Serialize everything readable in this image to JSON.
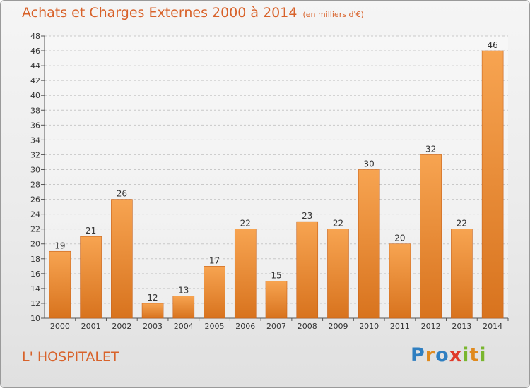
{
  "header": {
    "title": "Achats et Charges Externes 2000 à 2014",
    "subtitle": "(en milliers d'€)"
  },
  "footer": {
    "place": "L' HOSPITALET",
    "logo_letters": [
      {
        "ch": "P",
        "color": "#2f7fc1"
      },
      {
        "ch": "r",
        "color": "#e08a1e"
      },
      {
        "ch": "o",
        "color": "#2f7fc1"
      },
      {
        "ch": "x",
        "color": "#e03a2a"
      },
      {
        "ch": "i",
        "color": "#79b62e"
      },
      {
        "ch": "t",
        "color": "#e08a1e"
      },
      {
        "ch": "i",
        "color": "#79b62e"
      }
    ]
  },
  "chart_data": {
    "type": "bar",
    "title": "Achats et Charges Externes 2000 à 2014",
    "subtitle": "(en milliers d'€)",
    "categories": [
      "2000",
      "2001",
      "2002",
      "2003",
      "2004",
      "2005",
      "2006",
      "2007",
      "2008",
      "2009",
      "2010",
      "2011",
      "2012",
      "2013",
      "2014"
    ],
    "values": [
      19,
      21,
      26,
      12,
      13,
      17,
      22,
      15,
      23,
      22,
      30,
      20,
      32,
      22,
      46
    ],
    "ylim": [
      10,
      48
    ],
    "yticks": [
      10,
      12,
      14,
      16,
      18,
      20,
      22,
      24,
      26,
      28,
      30,
      32,
      34,
      36,
      38,
      40,
      42,
      44,
      46,
      48
    ],
    "grid": true,
    "bar_color_top": "#f7a451",
    "bar_color_bottom": "#d8731e"
  }
}
